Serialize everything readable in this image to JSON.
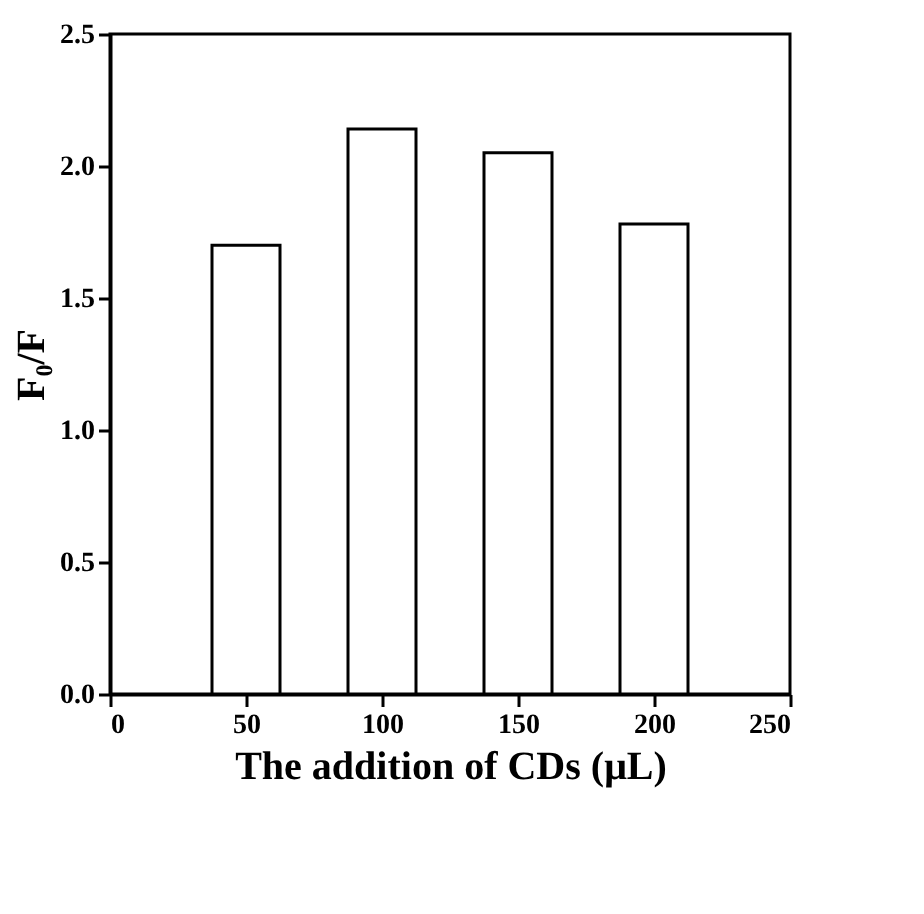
{
  "chart_data": {
    "type": "bar",
    "xlabel": "The addition of CDs (μL)",
    "ylabel": "F₀/F",
    "x": [
      50,
      100,
      150,
      200
    ],
    "values": [
      1.7,
      2.14,
      2.05,
      1.78
    ],
    "color": "#ffffff",
    "xlim": [
      0,
      250
    ],
    "xticks": [
      0,
      50,
      100,
      150,
      200,
      250
    ],
    "ylim": [
      0,
      2.5
    ],
    "yticks": [
      {
        "value": 0,
        "label": "0.0"
      },
      0.5,
      {
        "value": 1,
        "label": "1.0"
      },
      1.5,
      {
        "value": 2,
        "label": "2.0"
      },
      2.5
    ],
    "grid": false
  }
}
